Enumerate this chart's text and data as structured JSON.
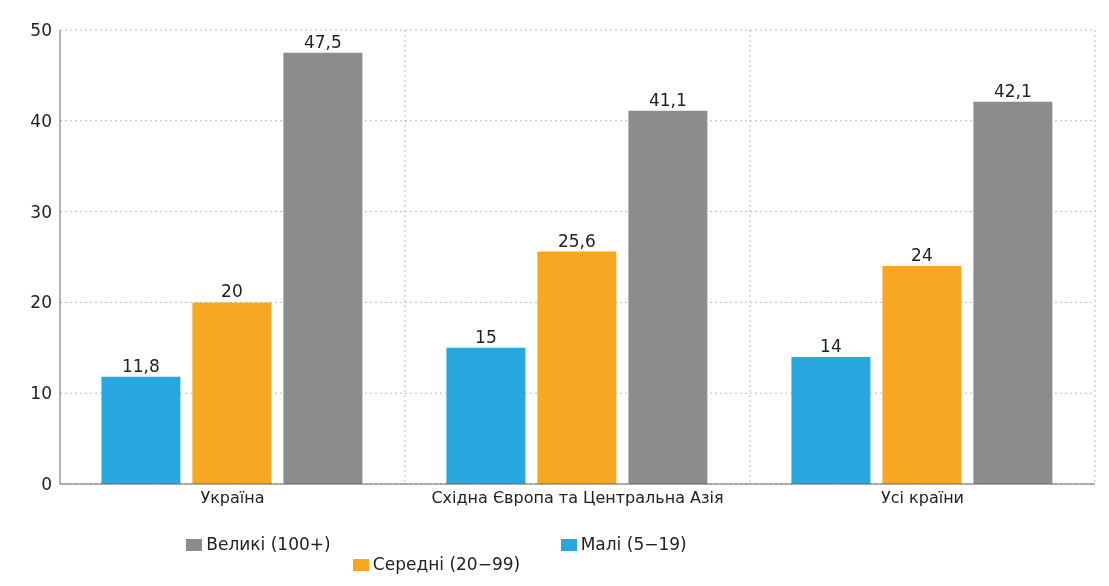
{
  "chart_data": {
    "type": "bar",
    "categories": [
      "Україна",
      "Східна Європа та Центральна Азія",
      "Усі країни"
    ],
    "series": [
      {
        "name": "Малі (5−19)",
        "color": "#29a8e0",
        "values": [
          11.8,
          15,
          14
        ],
        "value_labels": [
          "11,8",
          "15",
          "14"
        ]
      },
      {
        "name": "Середні (20−99)",
        "color": "#f7a823",
        "values": [
          20,
          25.6,
          24
        ],
        "value_labels": [
          "20",
          "25,6",
          "24"
        ]
      },
      {
        "name": "Великі (100+)",
        "color": "#8c8c8c",
        "values": [
          47.5,
          41.1,
          42.1
        ],
        "value_labels": [
          "47,5",
          "41,1",
          "42,1"
        ]
      }
    ],
    "ylim": [
      0,
      50
    ],
    "yticks": [
      0,
      10,
      20,
      30,
      40,
      50
    ],
    "grid": true,
    "legend": "bottom"
  }
}
